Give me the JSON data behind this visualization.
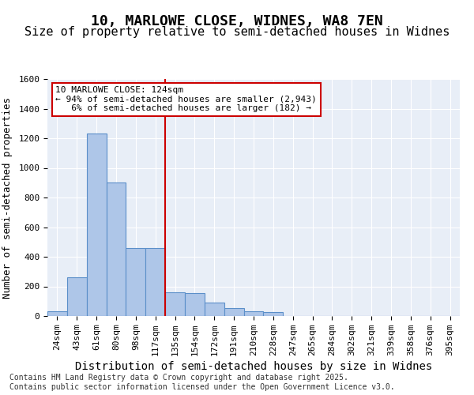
{
  "title_line1": "10, MARLOWE CLOSE, WIDNES, WA8 7EN",
  "title_line2": "Size of property relative to semi-detached houses in Widnes",
  "xlabel": "Distribution of semi-detached houses by size in Widnes",
  "ylabel": "Number of semi-detached properties",
  "categories": [
    "24sqm",
    "43sqm",
    "61sqm",
    "80sqm",
    "98sqm",
    "117sqm",
    "135sqm",
    "154sqm",
    "172sqm",
    "191sqm",
    "210sqm",
    "228sqm",
    "247sqm",
    "265sqm",
    "284sqm",
    "302sqm",
    "321sqm",
    "339sqm",
    "358sqm",
    "376sqm",
    "395sqm"
  ],
  "values": [
    30,
    260,
    1230,
    900,
    460,
    460,
    160,
    155,
    90,
    55,
    30,
    25,
    0,
    0,
    0,
    0,
    0,
    0,
    0,
    0,
    0
  ],
  "bar_color": "#aec6e8",
  "bar_edge_color": "#5b8fc9",
  "vline_x": 5.5,
  "vline_color": "#cc0000",
  "ylim": [
    0,
    1600
  ],
  "yticks": [
    0,
    200,
    400,
    600,
    800,
    1000,
    1200,
    1400,
    1600
  ],
  "annotation_box_text": "10 MARLOWE CLOSE: 124sqm\n← 94% of semi-detached houses are smaller (2,943)\n   6% of semi-detached houses are larger (182) →",
  "annotation_box_color": "#cc0000",
  "background_color": "#e8eef7",
  "grid_color": "#ffffff",
  "footer_text": "Contains HM Land Registry data © Crown copyright and database right 2025.\nContains public sector information licensed under the Open Government Licence v3.0.",
  "title_fontsize": 13,
  "subtitle_fontsize": 11,
  "xlabel_fontsize": 10,
  "ylabel_fontsize": 9,
  "tick_fontsize": 8,
  "annotation_fontsize": 8,
  "footer_fontsize": 7
}
